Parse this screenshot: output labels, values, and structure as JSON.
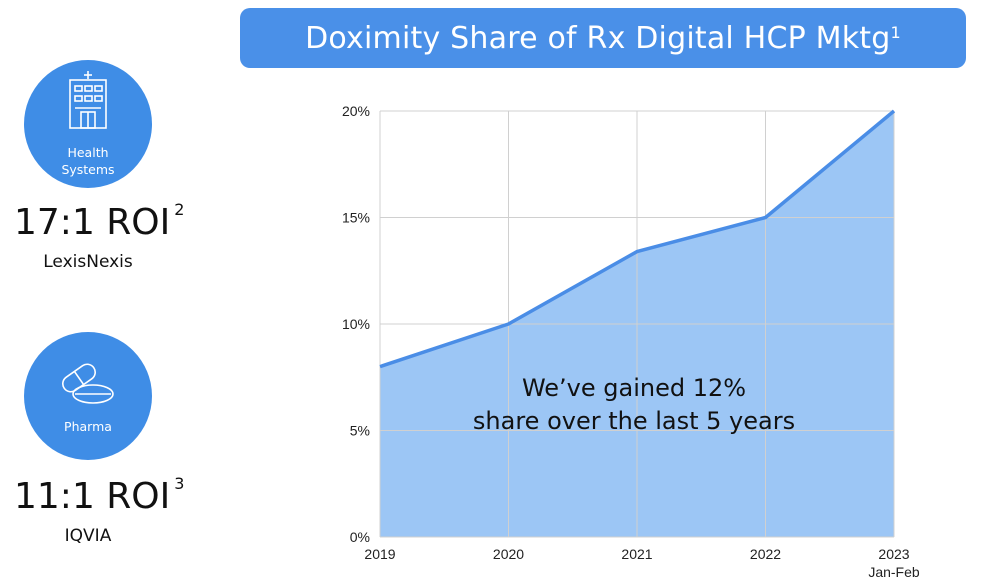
{
  "header": {
    "title": "Doximity Share of Rx Digital HCP Mktg",
    "title_sup": "1"
  },
  "stats": [
    {
      "icon": "hospital-icon",
      "label_lines": [
        "Health",
        "Systems"
      ],
      "roi": "17:1 ROI",
      "roi_sup": "2",
      "source": "LexisNexis"
    },
    {
      "icon": "pills-icon",
      "label_lines": [
        "Pharma"
      ],
      "roi": "11:1 ROI",
      "roi_sup": "3",
      "source": "IQVIA"
    }
  ],
  "chart_data": {
    "type": "area",
    "categories": [
      "2019",
      "2020",
      "2021",
      "2022",
      "2023"
    ],
    "category_sublabels": [
      "",
      "",
      "",
      "",
      "Jan-Feb"
    ],
    "values": [
      8,
      10,
      13.4,
      15,
      20
    ],
    "ylim": [
      0,
      20
    ],
    "yticks": [
      0,
      5,
      10,
      15,
      20
    ],
    "ytick_labels": [
      "0%",
      "5%",
      "10%",
      "15%",
      "20%"
    ],
    "annotation": [
      "We’ve gained 12%",
      "share over the last 5 years"
    ],
    "grid": true,
    "colors": {
      "line": "#4a8de6",
      "fill": "#9cc6f5",
      "grid": "#d0d0d0",
      "brand": "#4a90e8"
    }
  }
}
